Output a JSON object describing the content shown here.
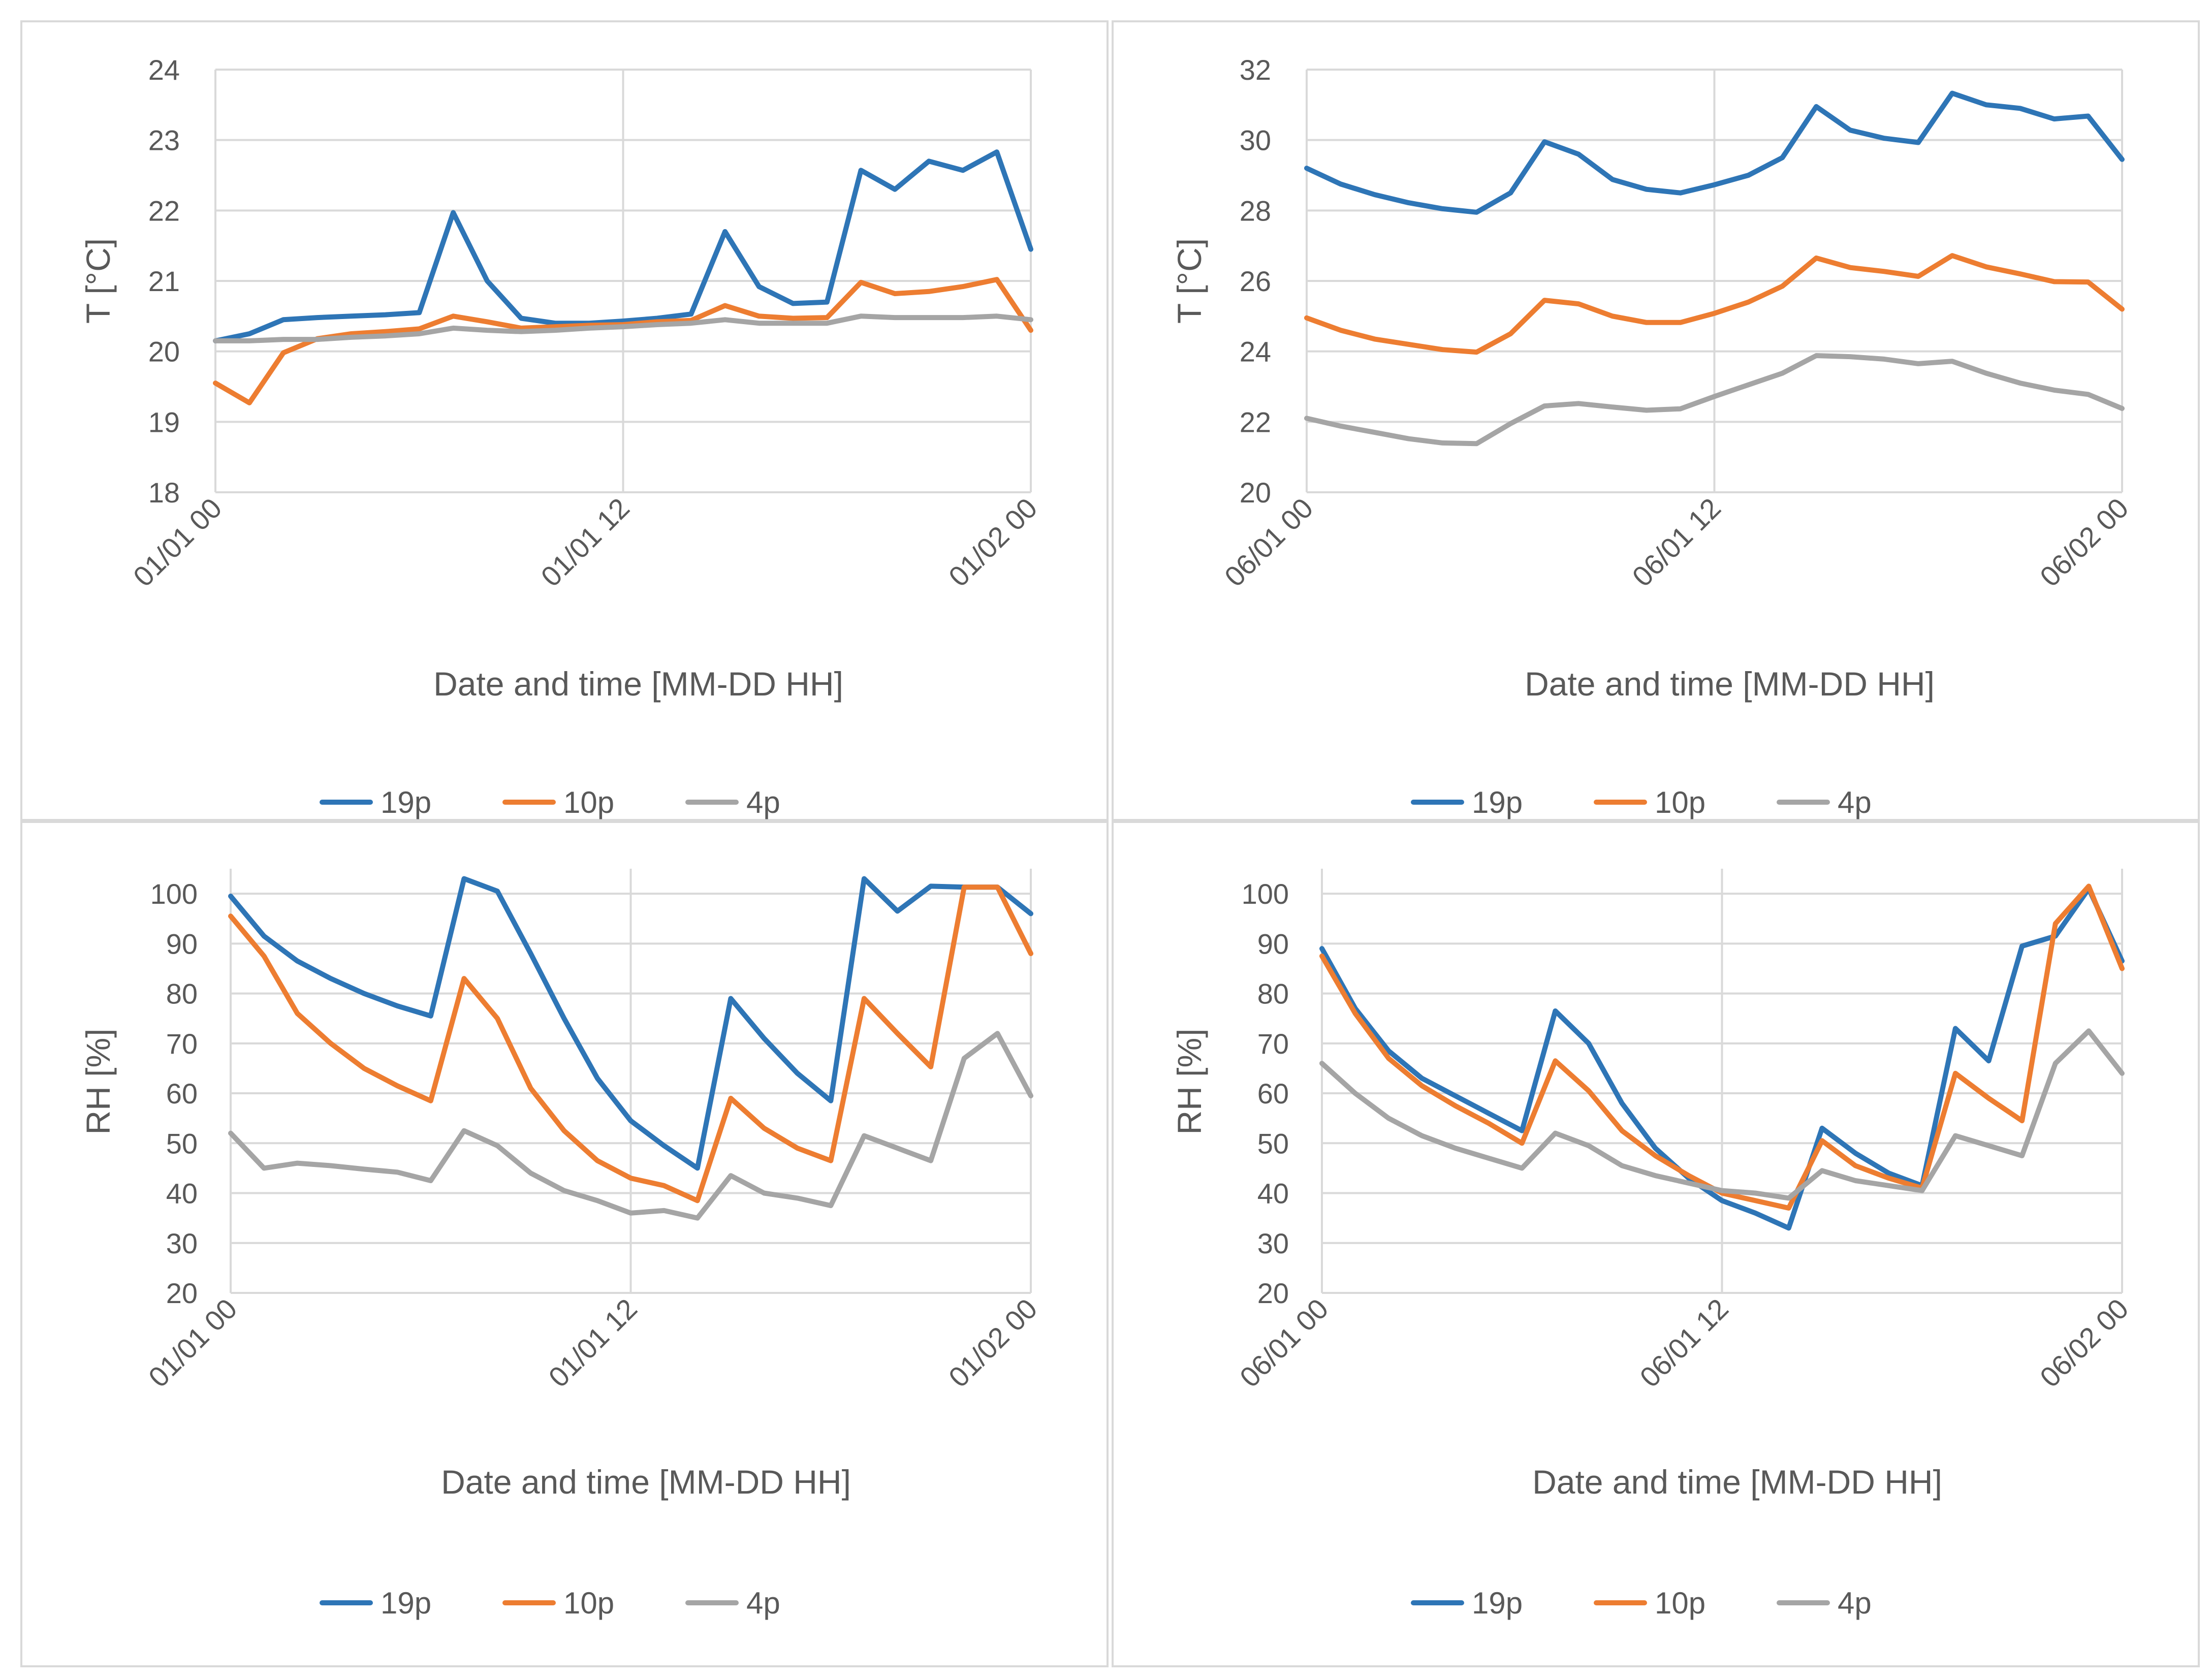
{
  "chart_data": [
    {
      "type": "line",
      "title": "",
      "xlabel": "Date and time [MM-DD HH]",
      "ylabel": "T [°C]",
      "ylim": [
        18,
        24
      ],
      "yticks": [
        18,
        19,
        20,
        21,
        22,
        23,
        24
      ],
      "xlim": [
        0,
        24
      ],
      "xtick_labels": [
        "01/01 00",
        "01/01 12",
        "01/02 00"
      ],
      "xtick_positions": [
        0,
        12,
        24
      ],
      "legend_position": "bottom",
      "grid": true,
      "series": [
        {
          "name": "19p",
          "color": "#2E75B6",
          "x": [
            0,
            1,
            2,
            3,
            4,
            5,
            6,
            7,
            8,
            9,
            10,
            11,
            12,
            13,
            14,
            15,
            16,
            17,
            18,
            19,
            20,
            21,
            22,
            23,
            24
          ],
          "values": [
            20.15,
            20.25,
            20.45,
            20.48,
            20.5,
            20.52,
            20.55,
            21.97,
            21.0,
            20.47,
            20.4,
            20.4,
            20.43,
            20.47,
            20.53,
            21.7,
            20.92,
            20.68,
            20.7,
            22.57,
            22.3,
            22.7,
            22.57,
            22.83,
            21.45
          ]
        },
        {
          "name": "10p",
          "color": "#ED7D31",
          "x": [
            0,
            1,
            2,
            3,
            4,
            5,
            6,
            7,
            8,
            9,
            10,
            11,
            12,
            13,
            14,
            15,
            16,
            17,
            18,
            19,
            20,
            21,
            22,
            23,
            24
          ],
          "values": [
            19.55,
            19.27,
            19.98,
            20.18,
            20.25,
            20.28,
            20.32,
            20.5,
            20.42,
            20.33,
            20.35,
            20.37,
            20.38,
            20.42,
            20.44,
            20.65,
            20.5,
            20.47,
            20.48,
            20.98,
            20.82,
            20.85,
            20.92,
            21.02,
            20.3
          ]
        },
        {
          "name": "4p",
          "color": "#A5A5A5",
          "x": [
            0,
            1,
            2,
            3,
            4,
            5,
            6,
            7,
            8,
            9,
            10,
            11,
            12,
            13,
            14,
            15,
            16,
            17,
            18,
            19,
            20,
            21,
            22,
            23,
            24
          ],
          "values": [
            20.15,
            20.15,
            20.17,
            20.17,
            20.2,
            20.22,
            20.25,
            20.33,
            20.3,
            20.28,
            20.3,
            20.33,
            20.35,
            20.38,
            20.4,
            20.45,
            20.4,
            20.4,
            20.4,
            20.5,
            20.48,
            20.48,
            20.48,
            20.5,
            20.45
          ]
        }
      ]
    },
    {
      "type": "line",
      "title": "",
      "xlabel": "Date and time [MM-DD HH]",
      "ylabel": "T [°C]",
      "ylim": [
        20,
        32
      ],
      "yticks": [
        20,
        22,
        24,
        26,
        28,
        30,
        32
      ],
      "xlim": [
        0,
        24
      ],
      "xtick_labels": [
        "06/01 00",
        "06/01 12",
        "06/02 00"
      ],
      "xtick_positions": [
        0,
        12,
        24
      ],
      "legend_position": "bottom",
      "grid": true,
      "series": [
        {
          "name": "19p",
          "color": "#2E75B6",
          "x": [
            0,
            1,
            2,
            3,
            4,
            5,
            6,
            7,
            8,
            9,
            10,
            11,
            12,
            13,
            14,
            15,
            16,
            17,
            18,
            19,
            20,
            21,
            22,
            23,
            24
          ],
          "values": [
            29.2,
            28.75,
            28.45,
            28.22,
            28.05,
            27.95,
            28.5,
            29.95,
            29.6,
            28.88,
            28.6,
            28.5,
            28.73,
            29.0,
            29.5,
            30.95,
            30.28,
            30.05,
            29.93,
            31.33,
            31.0,
            30.9,
            30.6,
            30.68,
            29.45
          ]
        },
        {
          "name": "10p",
          "color": "#ED7D31",
          "x": [
            0,
            1,
            2,
            3,
            4,
            5,
            6,
            7,
            8,
            9,
            10,
            11,
            12,
            13,
            14,
            15,
            16,
            17,
            18,
            19,
            20,
            21,
            22,
            23,
            24
          ],
          "values": [
            24.95,
            24.6,
            24.35,
            24.2,
            24.05,
            23.98,
            24.5,
            25.45,
            25.35,
            25.0,
            24.82,
            24.82,
            25.08,
            25.4,
            25.85,
            26.65,
            26.38,
            26.27,
            26.13,
            26.72,
            26.4,
            26.2,
            25.98,
            25.97,
            25.2
          ]
        },
        {
          "name": "4p",
          "color": "#A5A5A5",
          "x": [
            0,
            1,
            2,
            3,
            4,
            5,
            6,
            7,
            8,
            9,
            10,
            11,
            12,
            13,
            14,
            15,
            16,
            17,
            18,
            19,
            20,
            21,
            22,
            23,
            24
          ],
          "values": [
            22.1,
            21.88,
            21.7,
            21.52,
            21.4,
            21.38,
            21.95,
            22.45,
            22.52,
            22.42,
            22.33,
            22.37,
            22.72,
            23.05,
            23.38,
            23.88,
            23.85,
            23.78,
            23.65,
            23.72,
            23.38,
            23.1,
            22.9,
            22.78,
            22.38
          ]
        }
      ]
    },
    {
      "type": "line",
      "title": "",
      "xlabel": "Date and time [MM-DD HH]",
      "ylabel": "RH [%]",
      "ylim": [
        20,
        105
      ],
      "yticks": [
        20,
        30,
        40,
        50,
        60,
        70,
        80,
        90,
        100
      ],
      "xlim": [
        0,
        24
      ],
      "xtick_labels": [
        "01/01 00",
        "01/01 12",
        "01/02 00"
      ],
      "xtick_positions": [
        0,
        12,
        24
      ],
      "legend_position": "bottom",
      "grid": true,
      "series": [
        {
          "name": "19p",
          "color": "#2E75B6",
          "x": [
            0,
            1,
            2,
            3,
            4,
            5,
            6,
            7,
            8,
            9,
            10,
            11,
            12,
            13,
            14,
            15,
            16,
            17,
            18,
            19,
            20,
            21,
            22,
            23,
            24
          ],
          "values": [
            99.5,
            91.5,
            86.5,
            83.0,
            80.0,
            77.5,
            75.5,
            103.0,
            100.5,
            88.0,
            75.0,
            63.0,
            54.5,
            49.5,
            45.0,
            79.0,
            71.0,
            64.0,
            58.5,
            103.0,
            96.5,
            101.5,
            101.3,
            101.3,
            96.0
          ]
        },
        {
          "name": "10p",
          "color": "#ED7D31",
          "x": [
            0,
            1,
            2,
            3,
            4,
            5,
            6,
            7,
            8,
            9,
            10,
            11,
            12,
            13,
            14,
            15,
            16,
            17,
            18,
            19,
            20,
            21,
            22,
            23,
            24
          ],
          "values": [
            95.5,
            87.5,
            76.0,
            70.0,
            65.0,
            61.5,
            58.5,
            83.0,
            75.0,
            61.0,
            52.5,
            46.5,
            43.0,
            41.5,
            38.5,
            59.0,
            53.0,
            49.0,
            46.5,
            79.0,
            72.0,
            65.3,
            101.3,
            101.3,
            88.0
          ]
        },
        {
          "name": "4p",
          "color": "#A5A5A5",
          "x": [
            0,
            1,
            2,
            3,
            4,
            5,
            6,
            7,
            8,
            9,
            10,
            11,
            12,
            13,
            14,
            15,
            16,
            17,
            18,
            19,
            20,
            21,
            22,
            23,
            24
          ],
          "values": [
            52.0,
            45.0,
            46.0,
            45.5,
            44.8,
            44.2,
            42.5,
            52.5,
            49.5,
            44.0,
            40.5,
            38.5,
            36.0,
            36.5,
            35.0,
            43.5,
            40.0,
            39.0,
            37.5,
            51.5,
            49.0,
            46.5,
            67.0,
            72.0,
            59.5
          ]
        }
      ]
    },
    {
      "type": "line",
      "title": "",
      "xlabel": "Date and time [MM-DD HH]",
      "ylabel": "RH [%]",
      "ylim": [
        20,
        105
      ],
      "yticks": [
        20,
        30,
        40,
        50,
        60,
        70,
        80,
        90,
        100
      ],
      "xlim": [
        0,
        24
      ],
      "xtick_labels": [
        "06/01 00",
        "06/01 12",
        "06/02 00"
      ],
      "xtick_positions": [
        0,
        12,
        24
      ],
      "legend_position": "bottom",
      "grid": true,
      "series": [
        {
          "name": "19p",
          "color": "#2E75B6",
          "x": [
            0,
            1,
            2,
            3,
            4,
            5,
            6,
            7,
            8,
            9,
            10,
            11,
            12,
            13,
            14,
            15,
            16,
            17,
            18,
            19,
            20,
            21,
            22,
            23,
            24
          ],
          "values": [
            89.0,
            77.0,
            68.5,
            63.0,
            59.5,
            56.0,
            52.5,
            76.5,
            70.0,
            58.0,
            49.0,
            43.0,
            38.5,
            36.0,
            33.0,
            53.0,
            48.0,
            44.0,
            41.5,
            73.0,
            66.5,
            89.5,
            91.5,
            101.0,
            86.5
          ]
        },
        {
          "name": "10p",
          "color": "#ED7D31",
          "x": [
            0,
            1,
            2,
            3,
            4,
            5,
            6,
            7,
            8,
            9,
            10,
            11,
            12,
            13,
            14,
            15,
            16,
            17,
            18,
            19,
            20,
            21,
            22,
            23,
            24
          ],
          "values": [
            87.5,
            76.0,
            67.0,
            61.5,
            57.5,
            54.0,
            50.0,
            66.5,
            60.5,
            52.5,
            47.5,
            43.5,
            40.0,
            38.5,
            37.0,
            50.5,
            45.5,
            43.0,
            41.0,
            64.0,
            59.0,
            54.5,
            94.0,
            101.5,
            85.0
          ]
        },
        {
          "name": "4p",
          "color": "#A5A5A5",
          "x": [
            0,
            1,
            2,
            3,
            4,
            5,
            6,
            7,
            8,
            9,
            10,
            11,
            12,
            13,
            14,
            15,
            16,
            17,
            18,
            19,
            20,
            21,
            22,
            23,
            24
          ],
          "values": [
            66.0,
            60.0,
            55.0,
            51.5,
            49.0,
            47.0,
            45.0,
            52.0,
            49.5,
            45.5,
            43.5,
            42.0,
            40.5,
            40.0,
            39.0,
            44.5,
            42.5,
            41.5,
            40.5,
            51.5,
            49.5,
            47.5,
            66.0,
            72.5,
            64.0
          ]
        }
      ]
    }
  ]
}
